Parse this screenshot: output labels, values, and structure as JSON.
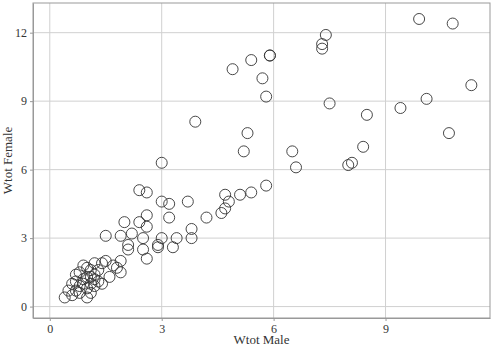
{
  "chart_data": {
    "type": "scatter",
    "x_label": "Wtot Male",
    "y_label": "Wtot Female",
    "x": [
      9.9,
      10.8,
      7.4,
      7.3,
      7.3,
      5.9,
      5.9,
      5.4,
      4.9,
      5.7,
      5.8,
      7.5,
      3.9,
      11.3,
      10.1,
      9.4,
      8.5,
      10.7,
      5.3,
      8.4,
      6.5,
      5.2,
      6.6,
      8.1,
      8.0,
      5.8,
      3.0,
      5.4,
      5.1,
      4.7,
      4.8,
      4.7,
      4.6,
      4.2,
      3.7,
      3.8,
      3.8,
      3.4,
      3.3,
      3.2,
      3.2,
      3.0,
      3.0,
      2.9,
      2.9,
      2.6,
      2.4,
      2.6,
      2.6,
      2.5,
      2.5,
      2.6,
      2.4,
      2.2,
      2.1,
      2.0,
      1.9,
      2.1,
      1.5,
      1.9,
      1.8,
      1.9,
      1.7,
      1.6,
      1.5,
      1.4,
      1.3,
      1.2,
      1.1,
      1.2,
      1.1,
      1.0,
      1.0,
      0.9,
      0.9,
      0.8,
      0.8,
      0.7,
      0.7,
      0.6,
      0.6,
      0.5,
      0.4,
      1.0,
      1.1,
      1.2,
      1.3,
      1.4,
      0.9,
      0.8,
      1.1,
      1.0,
      0.7,
      1.2
    ],
    "values": [
      12.6,
      12.4,
      11.9,
      11.5,
      11.3,
      11.0,
      11.0,
      10.8,
      10.4,
      10.0,
      9.2,
      8.9,
      8.1,
      9.7,
      9.1,
      8.7,
      8.4,
      7.6,
      7.6,
      7.0,
      6.8,
      6.8,
      6.1,
      6.3,
      6.2,
      5.3,
      6.3,
      5.0,
      4.9,
      4.9,
      4.6,
      4.3,
      4.1,
      3.9,
      4.6,
      3.4,
      3.0,
      3.0,
      2.6,
      3.9,
      4.5,
      4.6,
      3.0,
      2.6,
      2.7,
      5.0,
      5.1,
      4.0,
      3.5,
      3.0,
      2.5,
      2.1,
      3.7,
      3.2,
      2.7,
      3.7,
      3.1,
      2.5,
      3.1,
      2.0,
      1.7,
      1.5,
      1.8,
      1.3,
      2.0,
      1.9,
      1.6,
      1.9,
      1.6,
      1.2,
      1.0,
      1.3,
      0.8,
      1.8,
      1.2,
      1.5,
      0.9,
      1.4,
      0.7,
      1.0,
      0.5,
      0.7,
      0.4,
      0.4,
      0.6,
      0.9,
      1.1,
      1.0,
      1.0,
      0.6,
      1.3,
      1.7,
      1.1,
      1.4
    ],
    "xlim": [
      -0.45,
      11.8
    ],
    "ylim": [
      -0.5,
      13.3
    ],
    "xticks": [
      0,
      3,
      6,
      9
    ],
    "yticks": [
      0,
      3,
      6,
      9,
      12
    ],
    "grid": true,
    "marker": "circle",
    "color": "#333333"
  }
}
